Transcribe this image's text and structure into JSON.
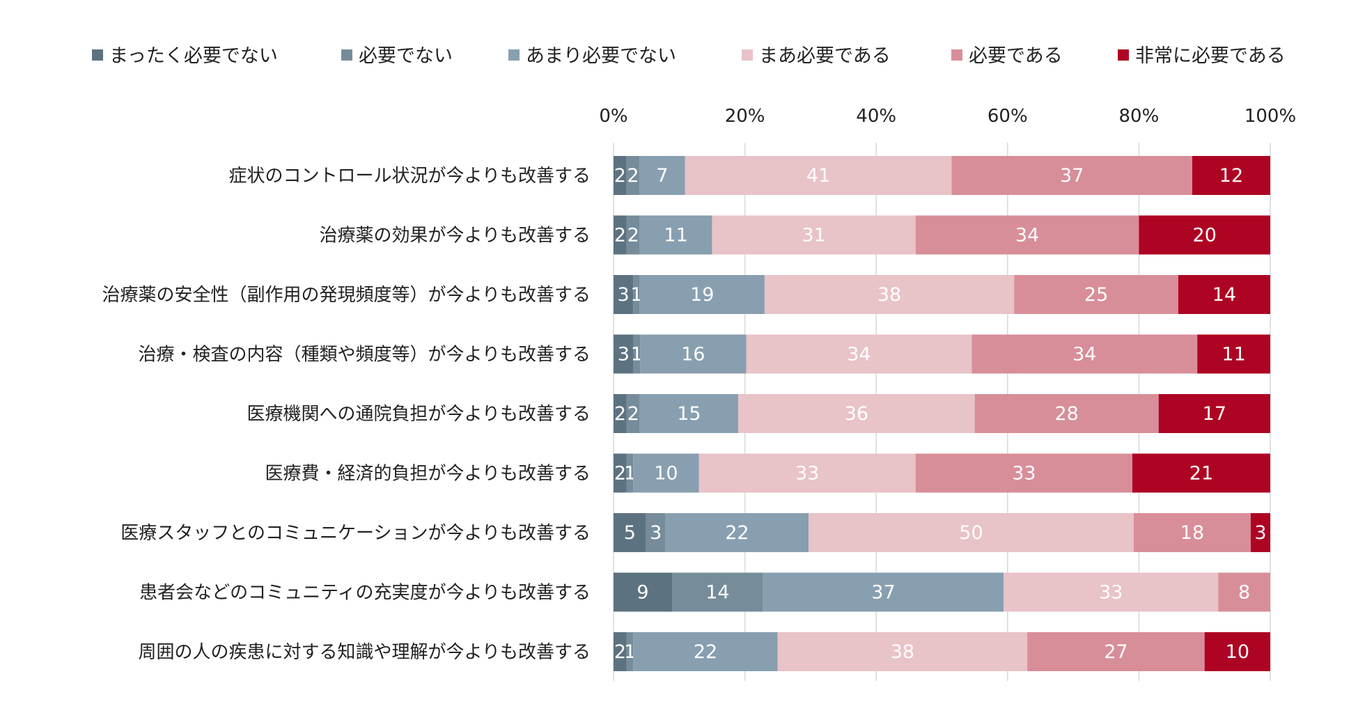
{
  "chart_data": {
    "type": "bar",
    "orientation": "horizontal",
    "stacked": "percent",
    "title": "",
    "xlabel": "",
    "ylabel": "",
    "xlim": [
      0,
      100
    ],
    "x_ticks": [
      "0%",
      "20%",
      "40%",
      "60%",
      "80%",
      "100%"
    ],
    "grid": true,
    "legend_position": "top",
    "categories": [
      "症状のコントロール状況が今よりも改善する",
      "治療薬の効果が今よりも改善する",
      "治療薬の安全性（副作用の発現頻度等）が今よりも改善する",
      "治療・検査の内容（種類や頻度等）が今よりも改善する",
      "医療機関への通院負担が今よりも改善する",
      "医療費・経済的負担が今よりも改善する",
      "医療スタッフとのコミュニケーションが今よりも改善する",
      "患者会などのコミュニティの充実度が今よりも改善する",
      "周囲の人の疾患に対する知識や理解が今よりも改善する"
    ],
    "series": [
      {
        "name": "まったく必要でない",
        "color": "#5d7280",
        "label_color": "#ffffff",
        "values": [
          2,
          2,
          3,
          3,
          2,
          2,
          5,
          9,
          2
        ]
      },
      {
        "name": "必要でない",
        "color": "#768c9a",
        "label_color": "#ffffff",
        "values": [
          2,
          2,
          1,
          1,
          2,
          1,
          3,
          14,
          1
        ]
      },
      {
        "name": "あまり必要でない",
        "color": "#889fb0",
        "label_color": "#ffffff",
        "values": [
          7,
          11,
          19,
          16,
          15,
          10,
          22,
          37,
          22
        ]
      },
      {
        "name": "まあ必要である",
        "color": "#e8c3c8",
        "label_color": "#ffffff",
        "values": [
          41,
          31,
          38,
          34,
          36,
          33,
          50,
          33,
          38
        ]
      },
      {
        "name": "必要である",
        "color": "#d88e99",
        "label_color": "#ffffff",
        "values": [
          37,
          34,
          25,
          34,
          28,
          33,
          18,
          8,
          27
        ]
      },
      {
        "name": "非常に必要である",
        "color": "#ae0423",
        "label_color": "#ffffff",
        "values": [
          12,
          20,
          14,
          11,
          17,
          21,
          3,
          0,
          10
        ]
      }
    ]
  }
}
